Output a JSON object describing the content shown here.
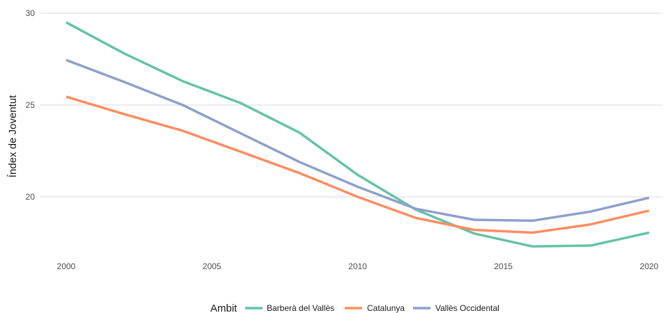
{
  "chart_data": {
    "type": "line",
    "ylabel": "Índex de Joventut",
    "xlim": [
      2000,
      2020
    ],
    "ylim": [
      16.8,
      30.3
    ],
    "x_ticks": [
      2000,
      2005,
      2010,
      2015,
      2020
    ],
    "y_ticks": [
      20,
      25,
      30
    ],
    "grid": true,
    "legend": {
      "title": "Ambit",
      "placement": "bottom"
    },
    "x": [
      2000,
      2002,
      2004,
      2006,
      2008,
      2010,
      2012,
      2014,
      2016,
      2018,
      2020
    ],
    "series": [
      {
        "name": "Barberà del Vallès",
        "color": "#66c2a5",
        "values": [
          29.5,
          27.8,
          26.3,
          25.1,
          23.5,
          21.2,
          19.3,
          18.0,
          17.3,
          17.35,
          18.05
        ]
      },
      {
        "name": "Catalunya",
        "color": "#fc8d62",
        "values": [
          25.45,
          24.5,
          23.6,
          22.45,
          21.3,
          20.0,
          18.85,
          18.2,
          18.05,
          18.5,
          19.25
        ]
      },
      {
        "name": "Vallès Occidental",
        "color": "#8da0cb",
        "values": [
          27.45,
          26.25,
          25.0,
          23.45,
          21.9,
          20.55,
          19.35,
          18.75,
          18.7,
          19.2,
          19.95
        ]
      }
    ]
  }
}
